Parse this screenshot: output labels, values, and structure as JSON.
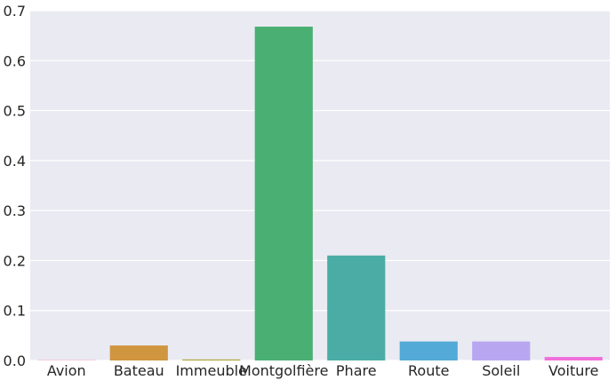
{
  "chart_data": {
    "type": "bar",
    "title": "",
    "xlabel": "",
    "ylabel": "",
    "categories": [
      "Avion",
      "Bateau",
      "Immeuble",
      "Montgolfière",
      "Phare",
      "Route",
      "Soleil",
      "Voiture"
    ],
    "values": [
      0.0005,
      0.03,
      0.002,
      0.668,
      0.21,
      0.038,
      0.038,
      0.007
    ],
    "colors": [
      "#f77189",
      "#d0953f",
      "#a9a231",
      "#4aaf72",
      "#4aaca5",
      "#53aad6",
      "#b8a7f0",
      "#f06fdb"
    ],
    "ylim": [
      0,
      0.7
    ],
    "yticks": [
      0.0,
      0.1,
      0.2,
      0.3,
      0.4,
      0.5,
      0.6,
      0.7
    ],
    "ytick_labels": [
      "0.0",
      "0.1",
      "0.2",
      "0.3",
      "0.4",
      "0.5",
      "0.6",
      "0.7"
    ],
    "grid": true,
    "style": {
      "background": "#eaeaf2",
      "grid_color": "#ffffff"
    }
  }
}
